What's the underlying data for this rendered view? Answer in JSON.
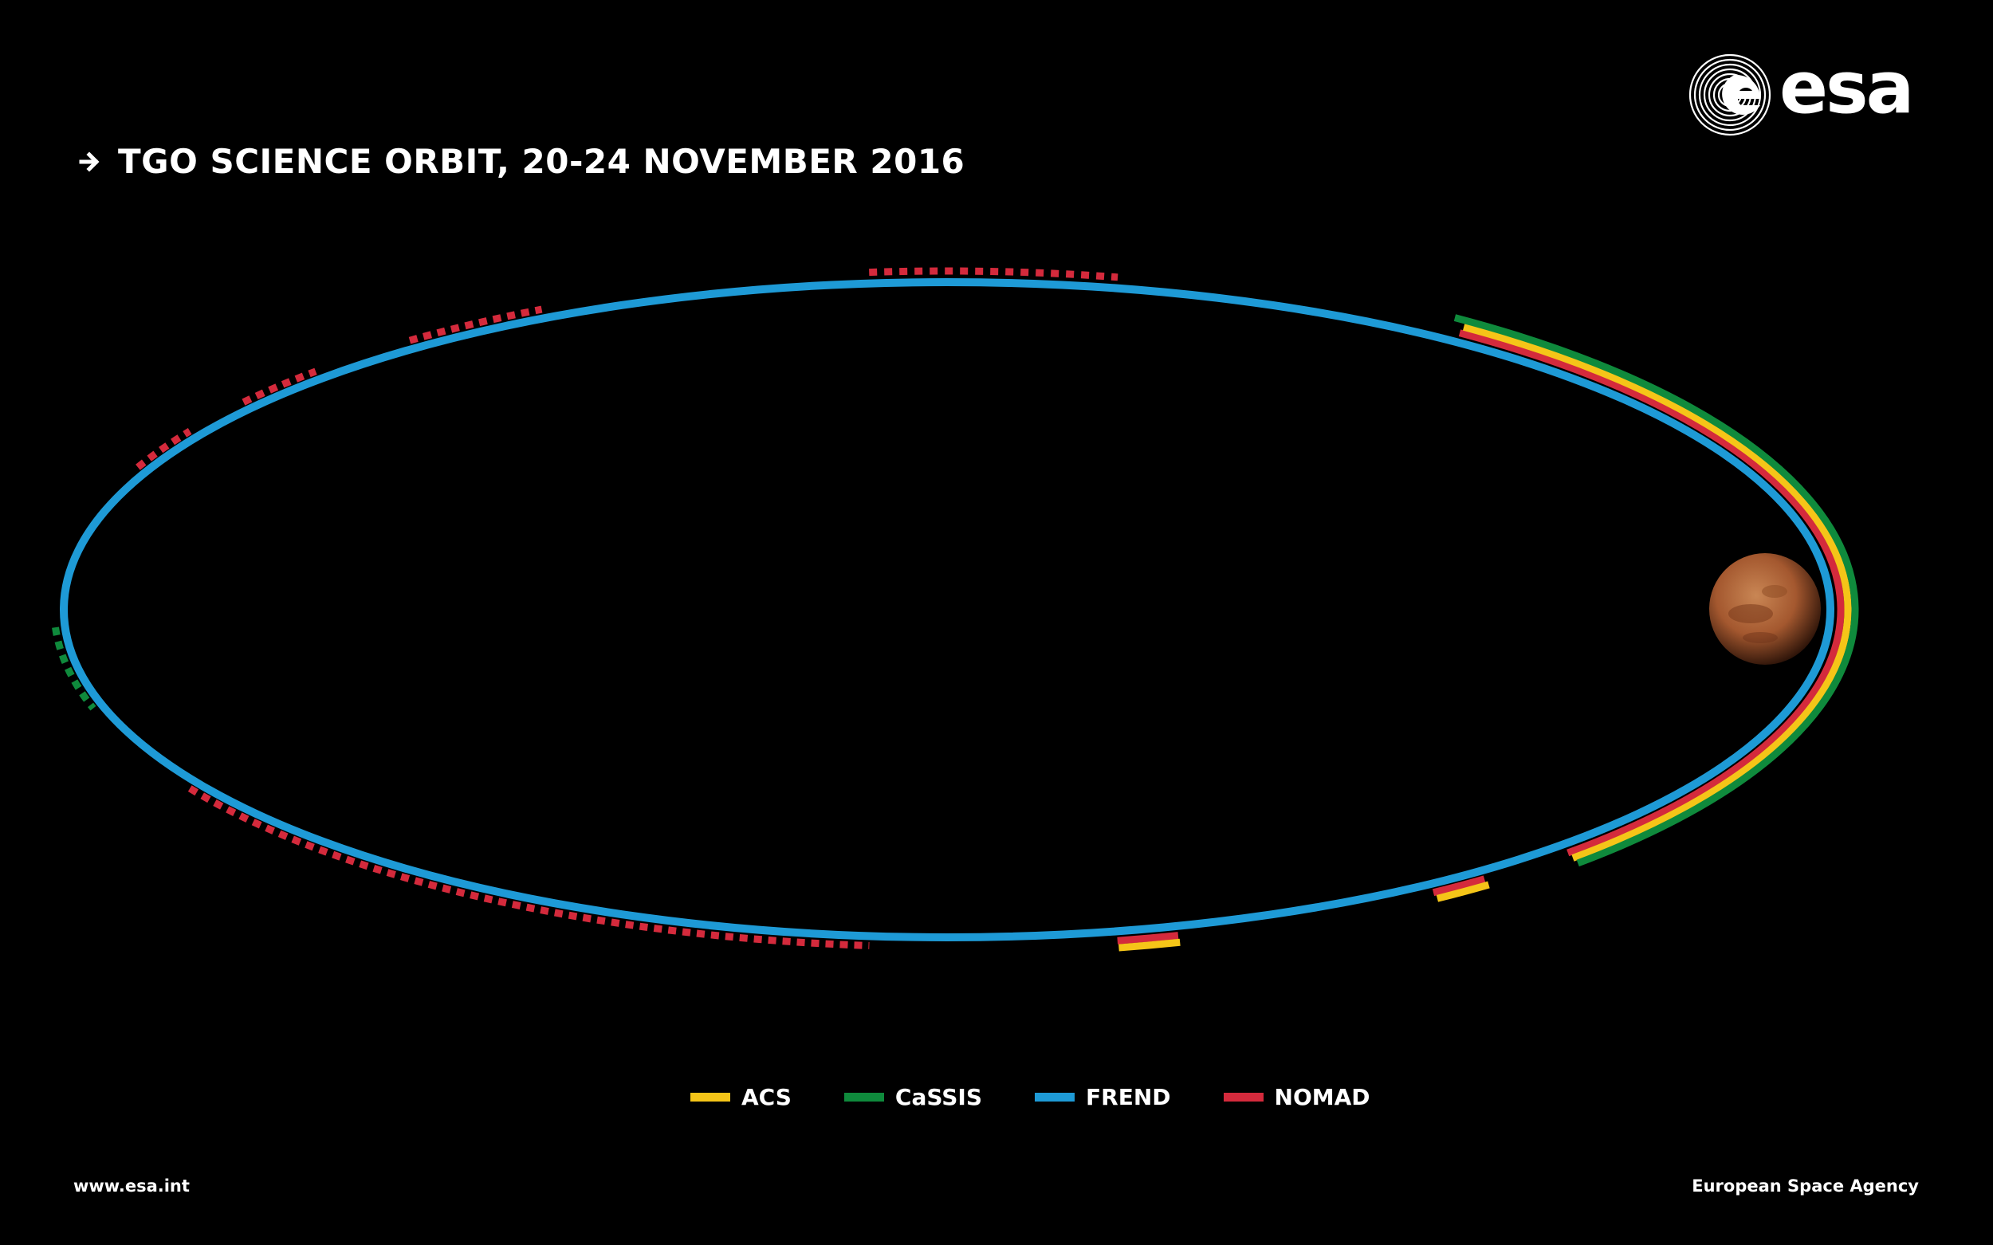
{
  "title": "TGO SCIENCE ORBIT, 20-24 NOVEMBER 2016",
  "logo": {
    "text": "esa"
  },
  "legend": [
    {
      "label": "ACS",
      "color": "#f5c518"
    },
    {
      "label": "CaSSIS",
      "color": "#0f8a3c"
    },
    {
      "label": "FREND",
      "color": "#1e9ad6"
    },
    {
      "label": "NOMAD",
      "color": "#d42a3c"
    }
  ],
  "footer": {
    "left": "www.esa.int",
    "right": "European Space Agency"
  },
  "colors": {
    "background": "#000000",
    "mars": "#b86a3c"
  }
}
